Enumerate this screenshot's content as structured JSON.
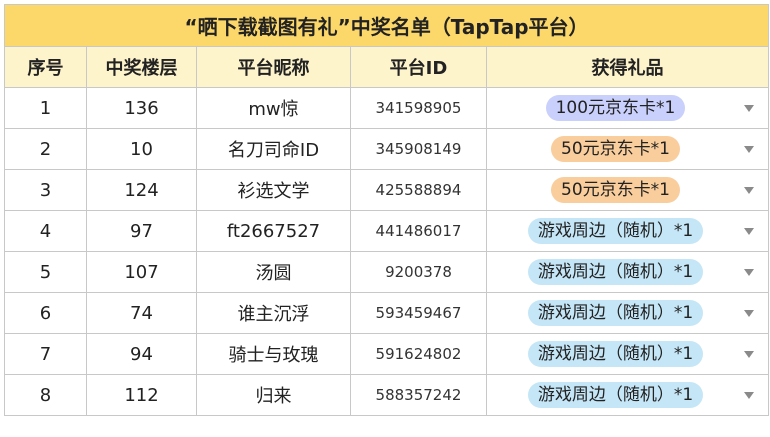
{
  "title": "“晒下载截图有礼”中奖名单（TapTap平台）",
  "headers": {
    "index": "序号",
    "floor": "中奖楼层",
    "nickname": "平台昵称",
    "platform_id": "平台ID",
    "prize": "获得礼品"
  },
  "rows": [
    {
      "index": "1",
      "floor": "136",
      "nickname": "mw惊",
      "platform_id": "341598905",
      "prize": "100元京东卡*1",
      "prize_color": "#c9d0fb"
    },
    {
      "index": "2",
      "floor": "10",
      "nickname": "名刀司命ID",
      "platform_id": "345908149",
      "prize": "50元京东卡*1",
      "prize_color": "#f9cd9c"
    },
    {
      "index": "3",
      "floor": "124",
      "nickname": "衫选文学",
      "platform_id": "425588894",
      "prize": "50元京东卡*1",
      "prize_color": "#f9cd9c"
    },
    {
      "index": "4",
      "floor": "97",
      "nickname": "ft2667527",
      "platform_id": "441486017",
      "prize": "游戏周边（随机）*1",
      "prize_color": "#c5e6f7"
    },
    {
      "index": "5",
      "floor": "107",
      "nickname": "汤圆",
      "platform_id": "9200378",
      "prize": "游戏周边（随机）*1",
      "prize_color": "#c5e6f7"
    },
    {
      "index": "6",
      "floor": "74",
      "nickname": "谁主沉浮",
      "platform_id": "593459467",
      "prize": "游戏周边（随机）*1",
      "prize_color": "#c5e6f7"
    },
    {
      "index": "7",
      "floor": "94",
      "nickname": "骑士与玫瑰",
      "platform_id": "591624802",
      "prize": "游戏周边（随机）*1",
      "prize_color": "#c5e6f7"
    },
    {
      "index": "8",
      "floor": "112",
      "nickname": "归来",
      "platform_id": "588357242",
      "prize": "游戏周边（随机）*1",
      "prize_color": "#c5e6f7"
    }
  ],
  "colors": {
    "title_bg": "#fcd86a",
    "header_bg": "#fef4cc",
    "grid_line": "#c8c8c8"
  }
}
